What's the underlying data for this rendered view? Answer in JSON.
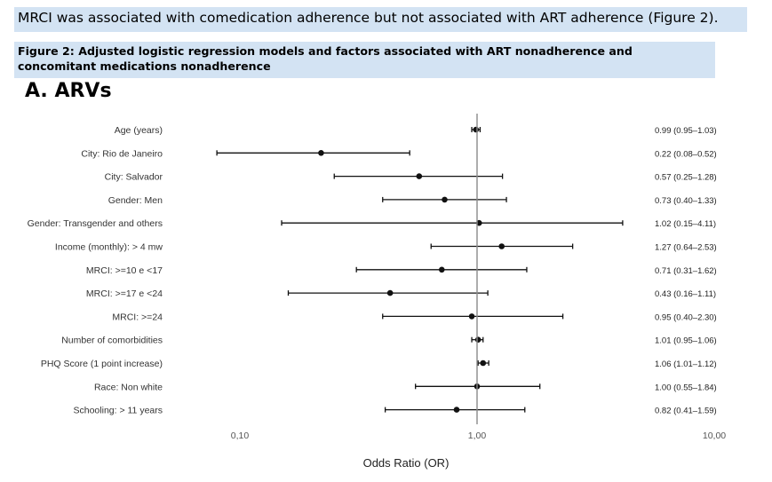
{
  "caption": "MRCI was associated with comedication adherence but not associated with ART adherence (Figure 2).",
  "figure_title": "Figure 2: Adjusted logistic regression models and factors associated with ART nonadherence and concomitant medications nonadherence",
  "chart_data": {
    "type": "forest",
    "panel_title": "A. ARVs",
    "xlabel": "Odds Ratio (OR)",
    "x_scale": "log",
    "xlim": [
      0.06,
      10
    ],
    "ticks": [
      0.1,
      1,
      10
    ],
    "tick_labels": [
      "0,10",
      "1,00",
      "10,00"
    ],
    "reference_line": 1,
    "rows": [
      {
        "label": "Age (years)",
        "or": 0.99,
        "lo": 0.95,
        "hi": 1.03,
        "text": "0.99 (0.95–1.03)"
      },
      {
        "label": "City: Rio de Janeiro",
        "or": 0.22,
        "lo": 0.08,
        "hi": 0.52,
        "text": "0.22 (0.08–0.52)"
      },
      {
        "label": "City: Salvador",
        "or": 0.57,
        "lo": 0.25,
        "hi": 1.28,
        "text": "0.57 (0.25–1.28)"
      },
      {
        "label": "Gender: Men",
        "or": 0.73,
        "lo": 0.4,
        "hi": 1.33,
        "text": "0.73 (0.40–1.33)"
      },
      {
        "label": "Gender: Transgender and others",
        "or": 1.02,
        "lo": 0.15,
        "hi": 4.11,
        "text": "1.02 (0.15–4.11)"
      },
      {
        "label": "Income (monthly): > 4 mw",
        "or": 1.27,
        "lo": 0.64,
        "hi": 2.53,
        "text": "1.27 (0.64–2.53)"
      },
      {
        "label": "MRCI: >=10 e <17",
        "or": 0.71,
        "lo": 0.31,
        "hi": 1.62,
        "text": "0.71 (0.31–1.62)"
      },
      {
        "label": "MRCI: >=17 e <24",
        "or": 0.43,
        "lo": 0.16,
        "hi": 1.11,
        "text": "0.43 (0.16–1.11)"
      },
      {
        "label": "MRCI: >=24",
        "or": 0.95,
        "lo": 0.4,
        "hi": 2.3,
        "text": "0.95 (0.40–2.30)"
      },
      {
        "label": "Number of comorbidities",
        "or": 1.01,
        "lo": 0.95,
        "hi": 1.06,
        "text": "1.01 (0.95–1.06)"
      },
      {
        "label": "PHQ Score (1 point increase)",
        "or": 1.06,
        "lo": 1.01,
        "hi": 1.12,
        "text": "1.06 (1.01–1.12)"
      },
      {
        "label": "Race: Non white",
        "or": 1.0,
        "lo": 0.55,
        "hi": 1.84,
        "text": "1.00 (0.55–1.84)"
      },
      {
        "label": "Schooling: > 11 years",
        "or": 0.82,
        "lo": 0.41,
        "hi": 1.59,
        "text": "0.82 (0.41–1.59)"
      }
    ]
  }
}
